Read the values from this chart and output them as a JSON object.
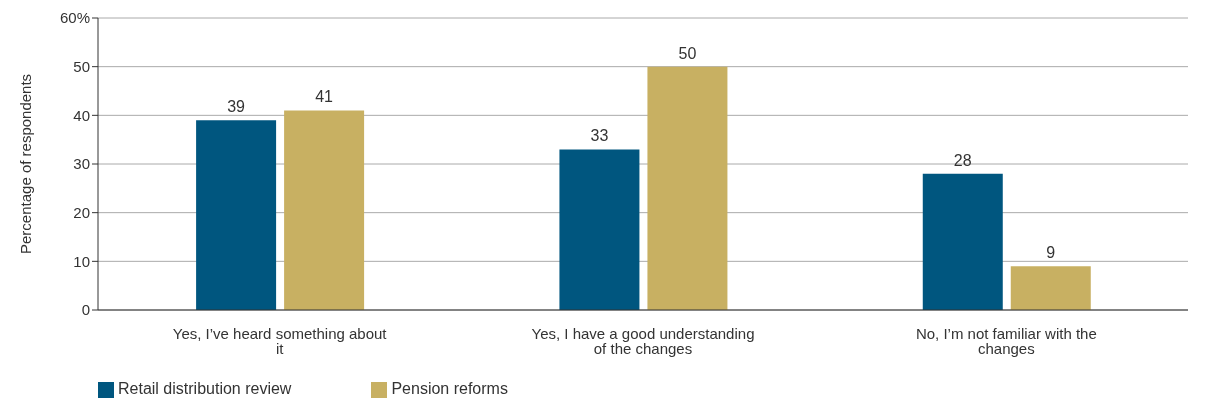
{
  "chart_data": {
    "type": "bar",
    "ylabel": "Percentage of respondents",
    "categories": [
      "Yes, I’ve heard something about it",
      "Yes, I have a good understanding of the changes",
      "No, I’m not familiar with the changes"
    ],
    "series": [
      {
        "name": "Retail distribution review",
        "color": "#00567f",
        "values": [
          39,
          33,
          28
        ]
      },
      {
        "name": "Pension reforms",
        "color": "#c8b062",
        "values": [
          41,
          50,
          9
        ]
      }
    ],
    "ylim": [
      0,
      60
    ],
    "yticks": [
      0,
      10,
      20,
      30,
      40,
      50,
      {
        "value": 60,
        "label": "60%"
      }
    ],
    "grid": "y",
    "legend": "bottom left",
    "data_labels": true
  }
}
